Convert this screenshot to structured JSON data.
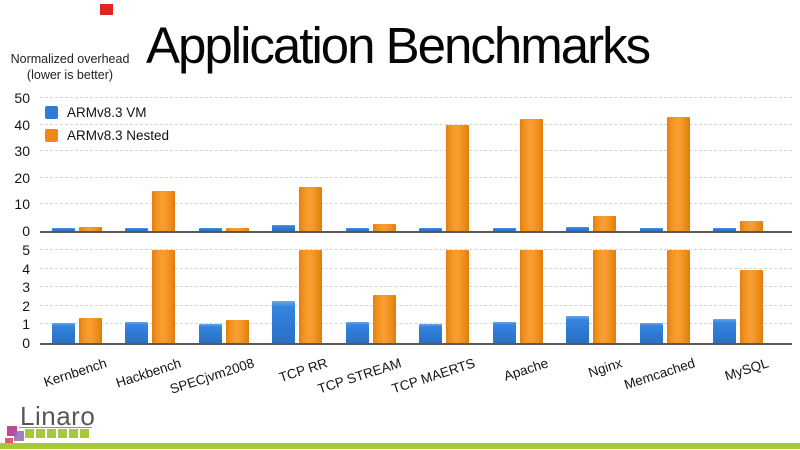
{
  "slide": {
    "title": "Application Benchmarks",
    "axis_note_line1": "Normalized overhead",
    "axis_note_line2": "(lower is better)",
    "accent_square_color": "#e2261f"
  },
  "footer": {
    "logo_text": "Linaro",
    "logo_colors": {
      "text": "#57585a",
      "green": "#a6c93c",
      "magenta": "#c0489a",
      "purple": "#8f6bb0",
      "red": "#d84a4e"
    }
  },
  "chart_data": {
    "type": "bar",
    "title": "Application Benchmarks",
    "ylabel": "Normalized overhead (lower is better)",
    "grid": true,
    "legend_position": "top-left",
    "categories": [
      "Kernbench",
      "Hackbench",
      "SPECjvm2008",
      "TCP RR",
      "TCP STREAM",
      "TCP MAERTS",
      "Apache",
      "Nginx",
      "Memcached",
      "MySQL"
    ],
    "series": [
      {
        "name": "ARMv8.3 VM",
        "color": "#2e7cd9",
        "values": [
          1.05,
          1.15,
          1.0,
          2.25,
          1.15,
          1.0,
          1.15,
          1.45,
          1.05,
          1.3
        ]
      },
      {
        "name": "ARMv8.3 Nested",
        "color": "#f08a16",
        "values": [
          1.35,
          15,
          1.25,
          16.5,
          2.6,
          40,
          42,
          5.5,
          43,
          3.9
        ]
      }
    ],
    "panels": [
      {
        "ylim": [
          0,
          50
        ],
        "ticks": [
          0,
          10,
          20,
          30,
          40,
          50
        ]
      },
      {
        "ylim": [
          0,
          5
        ],
        "ticks": [
          0,
          1,
          2,
          3,
          4,
          5
        ],
        "note": "zoomed view, bars taller than 5 are clipped at 5"
      }
    ]
  }
}
